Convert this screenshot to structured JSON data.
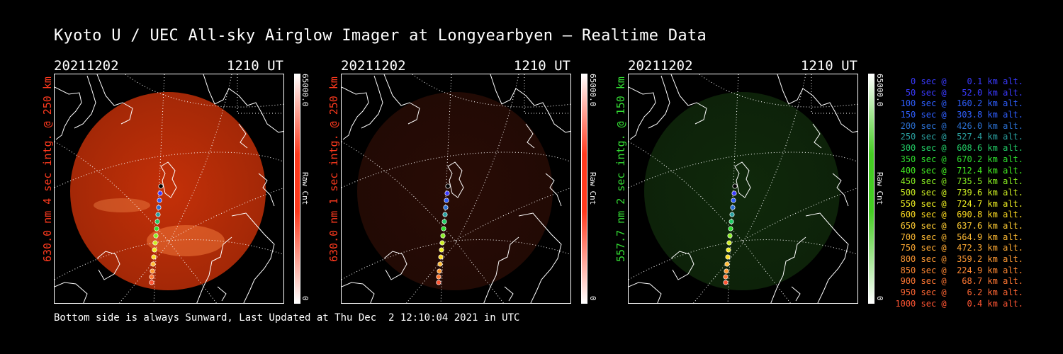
{
  "title": "Kyoto U / UEC All-sky Airglow Imager at Longyearbyen — Realtime Data",
  "footer": "Bottom side is always Sunward, Last Updated at Thu Dec  2 12:10:04 2021 in UTC",
  "panels": [
    {
      "date": "20211202",
      "time": "1210 UT",
      "side_label": "630.0 nm 4 sec intg. @ 250 km",
      "side_label_color": "#ff3a1e",
      "colorbar_max": "65000.0",
      "colorbar_min": "0",
      "colorbar_unit": "Raw Cnt",
      "colorbar_color": "#ff3a1e",
      "image_color": "#c43008",
      "image_brightness": 1.0
    },
    {
      "date": "20211202",
      "time": "1210 UT",
      "side_label": "630.0 nm 1 sec intg. @ 250 km",
      "side_label_color": "#ff3a1e",
      "colorbar_max": "65000.0",
      "colorbar_min": "0",
      "colorbar_unit": "Raw Cnt",
      "colorbar_color": "#ff3a1e",
      "image_color": "#5a1a0c",
      "image_brightness": 0.45
    },
    {
      "date": "20211202",
      "time": "1210 UT",
      "side_label": "557.7 nm 2 sec intg. @ 150 km",
      "side_label_color": "#33dd33",
      "colorbar_max": "65000.0",
      "colorbar_min": "0",
      "colorbar_unit": "Raw Cnt",
      "colorbar_color": "#44cc22",
      "image_color": "#1c4a14",
      "image_brightness": 0.55
    }
  ],
  "legend": [
    {
      "text": "0 sec @    0.1 km alt.",
      "color": "#3a3aff"
    },
    {
      "text": "50 sec @   52.0 km alt.",
      "color": "#3a3aff"
    },
    {
      "text": "100 sec @  160.2 km alt.",
      "color": "#2f5fff"
    },
    {
      "text": "150 sec @  303.8 km alt.",
      "color": "#2f5fff"
    },
    {
      "text": "200 sec @  426.0 km alt.",
      "color": "#2a6fd0"
    },
    {
      "text": "250 sec @  527.4 km alt.",
      "color": "#2aa0a0"
    },
    {
      "text": "300 sec @  608.6 km alt.",
      "color": "#22cc66"
    },
    {
      "text": "350 sec @  670.2 km alt.",
      "color": "#2ee02e"
    },
    {
      "text": "400 sec @  712.4 km alt.",
      "color": "#44ee22"
    },
    {
      "text": "450 sec @  735.5 km alt.",
      "color": "#88ee22"
    },
    {
      "text": "500 sec @  739.6 km alt.",
      "color": "#ccee22"
    },
    {
      "text": "550 sec @  724.7 km alt.",
      "color": "#eeee22"
    },
    {
      "text": "600 sec @  690.8 km alt.",
      "color": "#ffdd22"
    },
    {
      "text": "650 sec @  637.6 km alt.",
      "color": "#ffcc33"
    },
    {
      "text": "700 sec @  564.9 km alt.",
      "color": "#ffbb33"
    },
    {
      "text": "750 sec @  472.3 km alt.",
      "color": "#ffaa33"
    },
    {
      "text": "800 sec @  359.2 km alt.",
      "color": "#ff9933"
    },
    {
      "text": "850 sec @  224.9 km alt.",
      "color": "#ff8833"
    },
    {
      "text": "900 sec @   68.7 km alt.",
      "color": "#ff7733"
    },
    {
      "text": "950 sec @    6.2 km alt.",
      "color": "#ff6633"
    },
    {
      "text": "1000 sec @    0.4 km alt.",
      "color": "#ff5533"
    }
  ]
}
